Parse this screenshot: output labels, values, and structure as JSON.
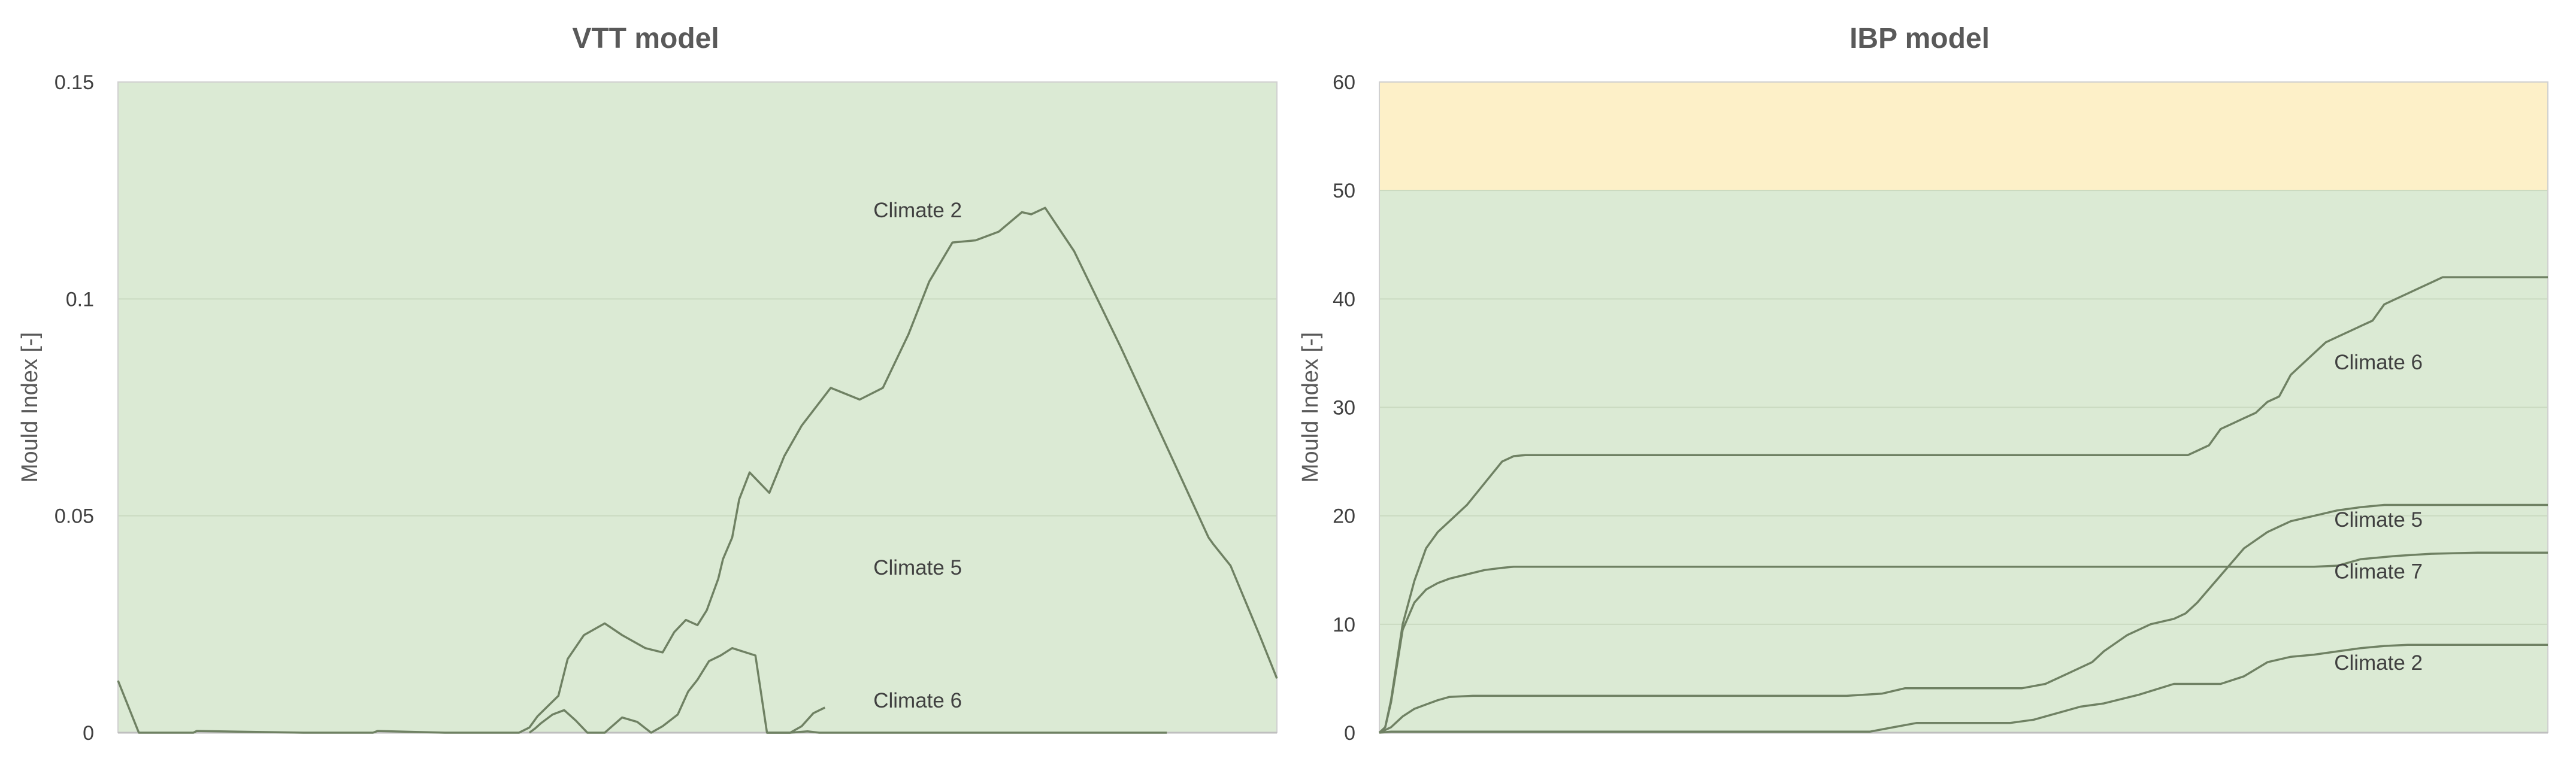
{
  "chart_data": [
    {
      "type": "line",
      "title": "VTT model",
      "ylabel": "Mould Index [-]",
      "xlabel": "",
      "ylim": [
        0,
        0.15
      ],
      "xlim": [
        0,
        1000
      ],
      "yticks": [
        0,
        0.05,
        0.1,
        0.15
      ],
      "ytick_labels": [
        "0",
        "0.05",
        "0.1",
        "0.15"
      ],
      "grid": true,
      "background_color": "#dbead4",
      "line_color": "#6f8163",
      "series": [
        {
          "name": "Climate 2",
          "x": [
            0,
            18,
            20,
            65,
            68,
            160,
            163,
            220,
            224,
            282,
            290,
            296,
            306,
            318,
            330,
            346,
            355,
            362,
            380,
            388,
            402,
            420,
            435,
            455,
            470,
            480,
            490,
            500,
            508,
            518,
            522,
            530,
            536,
            545,
            562,
            575,
            590,
            615,
            640,
            660,
            682,
            700,
            720,
            740,
            760,
            780,
            788,
            800,
            825,
            865,
            910,
            941,
            945,
            960,
            985,
            1000
          ],
          "y": [
            0.012,
            0.0,
            0.0,
            0.0,
            0.0004,
            0.0,
            0.0,
            0.0,
            0.0004,
            0.0,
            0.0,
            0.0,
            0.0,
            0.0,
            0.0,
            0.0,
            0.0012,
            0.0038,
            0.0085,
            0.017,
            0.0225,
            0.0252,
            0.0225,
            0.0195,
            0.0185,
            0.0232,
            0.026,
            0.0248,
            0.0282,
            0.0355,
            0.04,
            0.045,
            0.0538,
            0.06,
            0.0553,
            0.0638,
            0.0708,
            0.0795,
            0.0768,
            0.0795,
            0.0918,
            0.104,
            0.113,
            0.1135,
            0.1155,
            0.12,
            0.1195,
            0.121,
            0.111,
            0.089,
            0.063,
            0.045,
            0.0435,
            0.0385,
            0.0225,
            0.0125
          ]
        },
        {
          "name": "Climate 5",
          "x": [
            355,
            360,
            365,
            375,
            385,
            395,
            405,
            420,
            435,
            448,
            460,
            470,
            483,
            492,
            500,
            510,
            520,
            530,
            550,
            560,
            580,
            590,
            600,
            610
          ],
          "y": [
            0.0,
            0.001,
            0.0022,
            0.0042,
            0.0052,
            0.0028,
            0.0,
            0.0,
            0.0035,
            0.0025,
            0.0,
            0.0015,
            0.0042,
            0.0095,
            0.0122,
            0.0165,
            0.0178,
            0.0195,
            0.0178,
            0.0,
            0.0,
            0.0015,
            0.0045,
            0.0058
          ]
        },
        {
          "name": "Climate 6",
          "x": [
            560,
            565,
            580,
            595,
            605,
            620,
            640,
            660,
            680,
            700,
            905
          ],
          "y": [
            0.0,
            0.0,
            0.0,
            0.0003,
            0.0,
            0.0,
            0.0,
            0.0,
            0.0,
            0.0,
            0.0
          ]
        }
      ],
      "annotations": [
        {
          "text": "Climate 2",
          "x": 690,
          "y": 0.1188
        },
        {
          "text": "Climate 5",
          "x": 690,
          "y": 0.0364
        },
        {
          "text": "Climate 6",
          "x": 690,
          "y": 0.0058
        }
      ]
    },
    {
      "type": "line",
      "title": "IBP model",
      "ylabel": "Mould Index [-]",
      "xlabel": "",
      "ylim": [
        0,
        60
      ],
      "xlim": [
        0,
        1000
      ],
      "yticks": [
        0,
        10,
        20,
        30,
        40,
        50,
        60
      ],
      "ytick_labels": [
        "0",
        "10",
        "20",
        "30",
        "40",
        "50",
        "60"
      ],
      "grid": true,
      "zones": [
        {
          "from": 0,
          "to": 50,
          "color": "#dbead4"
        },
        {
          "from": 50,
          "to": 60,
          "color": "#fdf0c8"
        }
      ],
      "line_color": "#6f8163",
      "series": [
        {
          "name": "Climate 6",
          "x": [
            0,
            5,
            10,
            20,
            30,
            40,
            50,
            60,
            75,
            90,
            105,
            115,
            125,
            140,
            160,
            250,
            400,
            600,
            690,
            692,
            700,
            710,
            720,
            730,
            740,
            750,
            760,
            770,
            780,
            790,
            800,
            810,
            820,
            830,
            840,
            850,
            860,
            870,
            880,
            890,
            900,
            910,
            920,
            930,
            940,
            960,
            1000
          ],
          "y": [
            0,
            0.5,
            3,
            10,
            14,
            17,
            18.5,
            19.5,
            21,
            23,
            25,
            25.5,
            25.6,
            25.6,
            25.6,
            25.6,
            25.6,
            25.6,
            25.6,
            25.6,
            26,
            26.5,
            28,
            28.5,
            29,
            29.5,
            30.5,
            31,
            33,
            34,
            35,
            36,
            36.5,
            37,
            37.5,
            38,
            39.5,
            40,
            40.5,
            41,
            41.5,
            42,
            42,
            42,
            42,
            42,
            42
          ]
        },
        {
          "name": "Climate 7",
          "x": [
            0,
            5,
            10,
            20,
            30,
            40,
            50,
            60,
            75,
            90,
            105,
            115,
            125,
            140,
            200,
            300,
            500,
            720,
            740,
            800,
            820,
            840,
            870,
            900,
            940,
            1000
          ],
          "y": [
            0,
            0.5,
            2.8,
            9.5,
            12,
            13.2,
            13.8,
            14.2,
            14.6,
            15,
            15.2,
            15.3,
            15.3,
            15.3,
            15.3,
            15.3,
            15.3,
            15.3,
            15.3,
            15.3,
            15.4,
            16,
            16.3,
            16.5,
            16.6,
            16.6
          ]
        },
        {
          "name": "Climate 5",
          "x": [
            0,
            10,
            20,
            30,
            40,
            50,
            60,
            80,
            200,
            400,
            430,
            450,
            500,
            550,
            570,
            590,
            610,
            620,
            640,
            650,
            660,
            680,
            690,
            700,
            720,
            740,
            760,
            780,
            800,
            820,
            840,
            860,
            880,
            900,
            1000
          ],
          "y": [
            0,
            0.5,
            1.5,
            2.2,
            2.6,
            3.0,
            3.3,
            3.4,
            3.4,
            3.4,
            3.6,
            4.1,
            4.1,
            4.1,
            4.5,
            5.5,
            6.5,
            7.5,
            9,
            9.5,
            10,
            10.5,
            11,
            12,
            14.5,
            17,
            18.5,
            19.5,
            20,
            20.5,
            20.8,
            21,
            21,
            21,
            21
          ]
        },
        {
          "name": "Climate 2",
          "x": [
            0,
            10,
            200,
            420,
            440,
            460,
            500,
            540,
            560,
            580,
            600,
            620,
            650,
            680,
            700,
            720,
            740,
            760,
            780,
            800,
            820,
            840,
            860,
            880,
            1000
          ],
          "y": [
            0,
            0.1,
            0.1,
            0.1,
            0.5,
            0.9,
            0.9,
            0.9,
            1.2,
            1.8,
            2.4,
            2.7,
            3.5,
            4.5,
            4.5,
            4.5,
            5.2,
            6.5,
            7.0,
            7.2,
            7.5,
            7.8,
            8.0,
            8.1,
            8.1
          ]
        }
      ],
      "annotations": [
        {
          "text": "Climate 6",
          "x": 855,
          "y": 33.5
        },
        {
          "text": "Climate 5",
          "x": 855,
          "y": 19.0
        },
        {
          "text": "Climate 7",
          "x": 855,
          "y": 14.2
        },
        {
          "text": "Climate 2",
          "x": 855,
          "y": 5.8
        }
      ]
    }
  ]
}
